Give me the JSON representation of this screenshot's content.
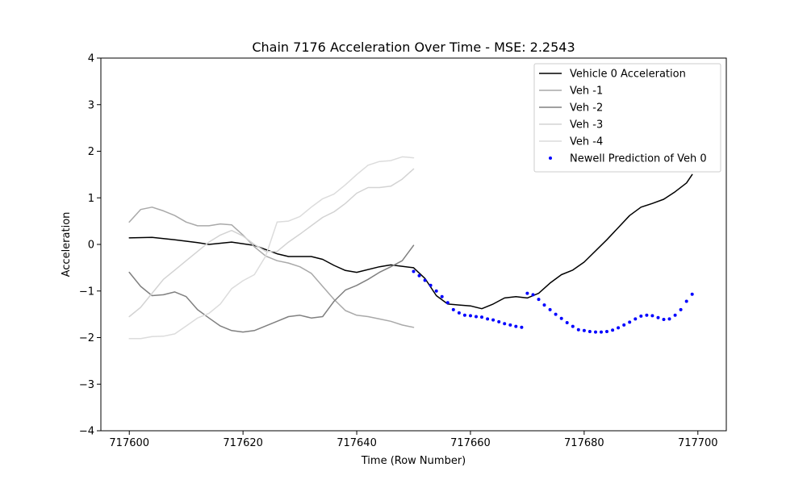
{
  "chart_data": {
    "type": "line",
    "title": "Chain 7176 Acceleration Over Time - MSE: 2.2543",
    "xlabel": "Time (Row Number)",
    "ylabel": "Acceleration",
    "xlim": [
      717595,
      717705
    ],
    "ylim": [
      -4,
      4
    ],
    "xticks": [
      717600,
      717620,
      717640,
      717660,
      717680,
      717700
    ],
    "xtick_labels": [
      "717600",
      "717620",
      "717640",
      "717660",
      "717680",
      "717700"
    ],
    "yticks": [
      -4,
      -3,
      -2,
      -1,
      0,
      1,
      2,
      3,
      4
    ],
    "ytick_labels": [
      "−4",
      "−3",
      "−2",
      "−1",
      "0",
      "1",
      "2",
      "3",
      "4"
    ],
    "grid": false,
    "legend_position": "top-right",
    "series": [
      {
        "name": "Vehicle 0 Acceleration",
        "color": "#000000",
        "style": "line",
        "x": [
          717600,
          717604,
          717608,
          717612,
          717614,
          717618,
          717622,
          717626,
          717628,
          717632,
          717634,
          717636,
          717638,
          717640,
          717644,
          717646,
          717650,
          717652,
          717654,
          717656,
          717658,
          717660,
          717662,
          717664,
          717666,
          717668,
          717670,
          717672,
          717674,
          717676,
          717678,
          717680,
          717684,
          717688,
          717690,
          717692,
          717694,
          717696,
          717698,
          717699
        ],
        "y": [
          0.14,
          0.15,
          0.1,
          0.04,
          0.0,
          0.05,
          -0.02,
          -0.2,
          -0.26,
          -0.26,
          -0.32,
          -0.45,
          -0.56,
          -0.6,
          -0.48,
          -0.44,
          -0.5,
          -0.73,
          -1.1,
          -1.28,
          -1.3,
          -1.32,
          -1.38,
          -1.28,
          -1.15,
          -1.12,
          -1.15,
          -1.05,
          -0.83,
          -0.65,
          -0.55,
          -0.38,
          0.1,
          0.62,
          0.8,
          0.88,
          0.97,
          1.13,
          1.32,
          1.5
        ]
      },
      {
        "name": "Veh -1",
        "color": "#a9a9a9",
        "style": "line",
        "x": [
          717600,
          717602,
          717604,
          717606,
          717608,
          717610,
          717612,
          717614,
          717616,
          717618,
          717620,
          717622,
          717624,
          717626,
          717628,
          717630,
          717632,
          717634,
          717636,
          717638,
          717640,
          717642,
          717644,
          717646,
          717648,
          717650
        ],
        "y": [
          0.48,
          0.75,
          0.8,
          0.72,
          0.62,
          0.48,
          0.4,
          0.4,
          0.44,
          0.42,
          0.2,
          -0.05,
          -0.25,
          -0.35,
          -0.4,
          -0.48,
          -0.62,
          -0.9,
          -1.18,
          -1.42,
          -1.52,
          -1.55,
          -1.6,
          -1.65,
          -1.73,
          -1.78
        ]
      },
      {
        "name": "Veh -2",
        "color": "#808080",
        "style": "line",
        "x": [
          717600,
          717602,
          717604,
          717606,
          717608,
          717610,
          717612,
          717614,
          717616,
          717618,
          717620,
          717622,
          717624,
          717626,
          717628,
          717630,
          717632,
          717634,
          717636,
          717638,
          717640,
          717642,
          717644,
          717646,
          717648,
          717650
        ],
        "y": [
          -0.6,
          -0.9,
          -1.1,
          -1.08,
          -1.02,
          -1.12,
          -1.4,
          -1.58,
          -1.75,
          -1.85,
          -1.88,
          -1.85,
          -1.75,
          -1.65,
          -1.55,
          -1.52,
          -1.58,
          -1.55,
          -1.22,
          -0.98,
          -0.88,
          -0.75,
          -0.6,
          -0.48,
          -0.35,
          -0.02
        ]
      },
      {
        "name": "Veh -3",
        "color": "#d3d3d3",
        "style": "line",
        "x": [
          717600,
          717602,
          717604,
          717606,
          717608,
          717610,
          717612,
          717614,
          717616,
          717618,
          717620,
          717622,
          717624,
          717626,
          717628,
          717630,
          717632,
          717634,
          717636,
          717638,
          717640,
          717642,
          717644,
          717646,
          717648,
          717650
        ],
        "y": [
          -1.55,
          -1.35,
          -1.05,
          -0.75,
          -0.55,
          -0.35,
          -0.15,
          0.05,
          0.2,
          0.3,
          0.18,
          0.0,
          -0.15,
          -0.15,
          0.05,
          0.22,
          0.4,
          0.58,
          0.7,
          0.88,
          1.1,
          1.22,
          1.22,
          1.25,
          1.4,
          1.62
        ]
      },
      {
        "name": "Veh -4",
        "color": "#dcdcdc",
        "style": "line",
        "x": [
          717600,
          717602,
          717604,
          717606,
          717608,
          717610,
          717612,
          717614,
          717616,
          717618,
          717620,
          717622,
          717624,
          717626,
          717628,
          717630,
          717632,
          717634,
          717636,
          717638,
          717640,
          717642,
          717644,
          717646,
          717648,
          717650
        ],
        "y": [
          -2.02,
          -2.02,
          -1.98,
          -1.97,
          -1.92,
          -1.75,
          -1.58,
          -1.48,
          -1.28,
          -0.95,
          -0.78,
          -0.65,
          -0.25,
          0.48,
          0.5,
          0.6,
          0.8,
          0.98,
          1.08,
          1.28,
          1.5,
          1.7,
          1.78,
          1.8,
          1.88,
          1.86
        ]
      },
      {
        "name": "Newell Prediction of Veh 0",
        "color": "#0000ff",
        "style": "dots",
        "x": [
          717650,
          717651,
          717652,
          717653,
          717654,
          717655,
          717656,
          717657,
          717658,
          717659,
          717660,
          717661,
          717662,
          717663,
          717664,
          717665,
          717666,
          717667,
          717668,
          717669,
          717670,
          717671,
          717672,
          717673,
          717674,
          717675,
          717676,
          717677,
          717678,
          717679,
          717680,
          717681,
          717682,
          717683,
          717684,
          717685,
          717686,
          717687,
          717688,
          717689,
          717690,
          717691,
          717692,
          717693,
          717694,
          717695,
          717696,
          717697,
          717698,
          717699
        ],
        "y": [
          -0.58,
          -0.67,
          -0.77,
          -0.88,
          -1.0,
          -1.12,
          -1.25,
          -1.4,
          -1.47,
          -1.52,
          -1.53,
          -1.55,
          -1.56,
          -1.6,
          -1.62,
          -1.66,
          -1.7,
          -1.73,
          -1.76,
          -1.78,
          -1.05,
          -1.08,
          -1.18,
          -1.3,
          -1.4,
          -1.5,
          -1.59,
          -1.68,
          -1.76,
          -1.83,
          -1.85,
          -1.87,
          -1.88,
          -1.88,
          -1.87,
          -1.84,
          -1.79,
          -1.73,
          -1.67,
          -1.6,
          -1.54,
          -1.52,
          -1.53,
          -1.57,
          -1.61,
          -1.6,
          -1.52,
          -1.4,
          -1.22,
          -1.07
        ]
      }
    ]
  }
}
